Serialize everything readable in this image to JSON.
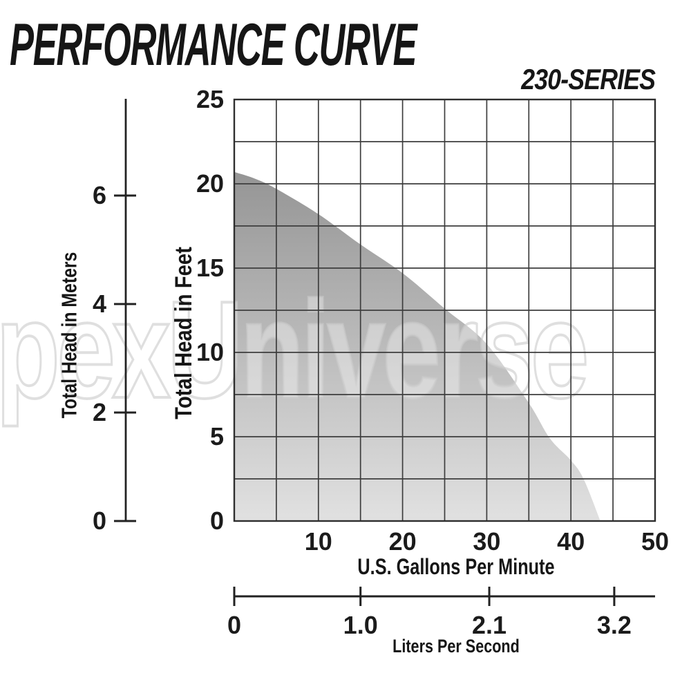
{
  "header": {
    "title": "PERFORMANCE CURVE",
    "series_label": "230-SERIES"
  },
  "watermark": "pexUniverse",
  "chart_data": {
    "type": "area",
    "title": "PERFORMANCE CURVE",
    "subtitle": "230-SERIES",
    "grid": true,
    "legend": "none",
    "x_axis": {
      "label": "U.S. Gallons Per Minute",
      "min": 0,
      "max": 50,
      "tick_labels": [
        "10",
        "20",
        "30",
        "40",
        "50"
      ],
      "tick_values": [
        10,
        20,
        30,
        40,
        50
      ],
      "gridline_step": 5
    },
    "y_axis": {
      "label": "Total Head in Feet",
      "min": 0,
      "max": 25,
      "tick_labels": [
        "25",
        "20",
        "15",
        "10",
        "5",
        "0"
      ],
      "tick_values": [
        25,
        20,
        15,
        10,
        5,
        0
      ],
      "gridline_step": 2.5
    },
    "y_axis_secondary": {
      "label": "Total Head in Meters",
      "tick_labels": [
        "6",
        "4",
        "2",
        "0"
      ],
      "tick_values": [
        6,
        4,
        2,
        0
      ]
    },
    "x_axis_secondary": {
      "label": "Liters Per Second",
      "tick_labels": [
        "0",
        "1.0",
        "2.1",
        "3.2"
      ]
    },
    "series": [
      {
        "name": "230-series pump curve",
        "units": [
          "US GPM",
          "feet of head"
        ],
        "points": [
          [
            0,
            20.7
          ],
          [
            2.5,
            20.3
          ],
          [
            5,
            19.7
          ],
          [
            10,
            18.2
          ],
          [
            15,
            16.4
          ],
          [
            20,
            14.7
          ],
          [
            25,
            12.6
          ],
          [
            30,
            10.5
          ],
          [
            35,
            7.0
          ],
          [
            37.5,
            4.9
          ],
          [
            40,
            3.6
          ],
          [
            41.5,
            2.5
          ],
          [
            43.5,
            0
          ]
        ]
      }
    ],
    "colors": {
      "fill_gradient_top": "#959595",
      "fill_gradient_bottom": "#e1e1e1",
      "gridline": "#3d3d3d",
      "axis": "#222222",
      "text": "#1b1b1b"
    }
  }
}
